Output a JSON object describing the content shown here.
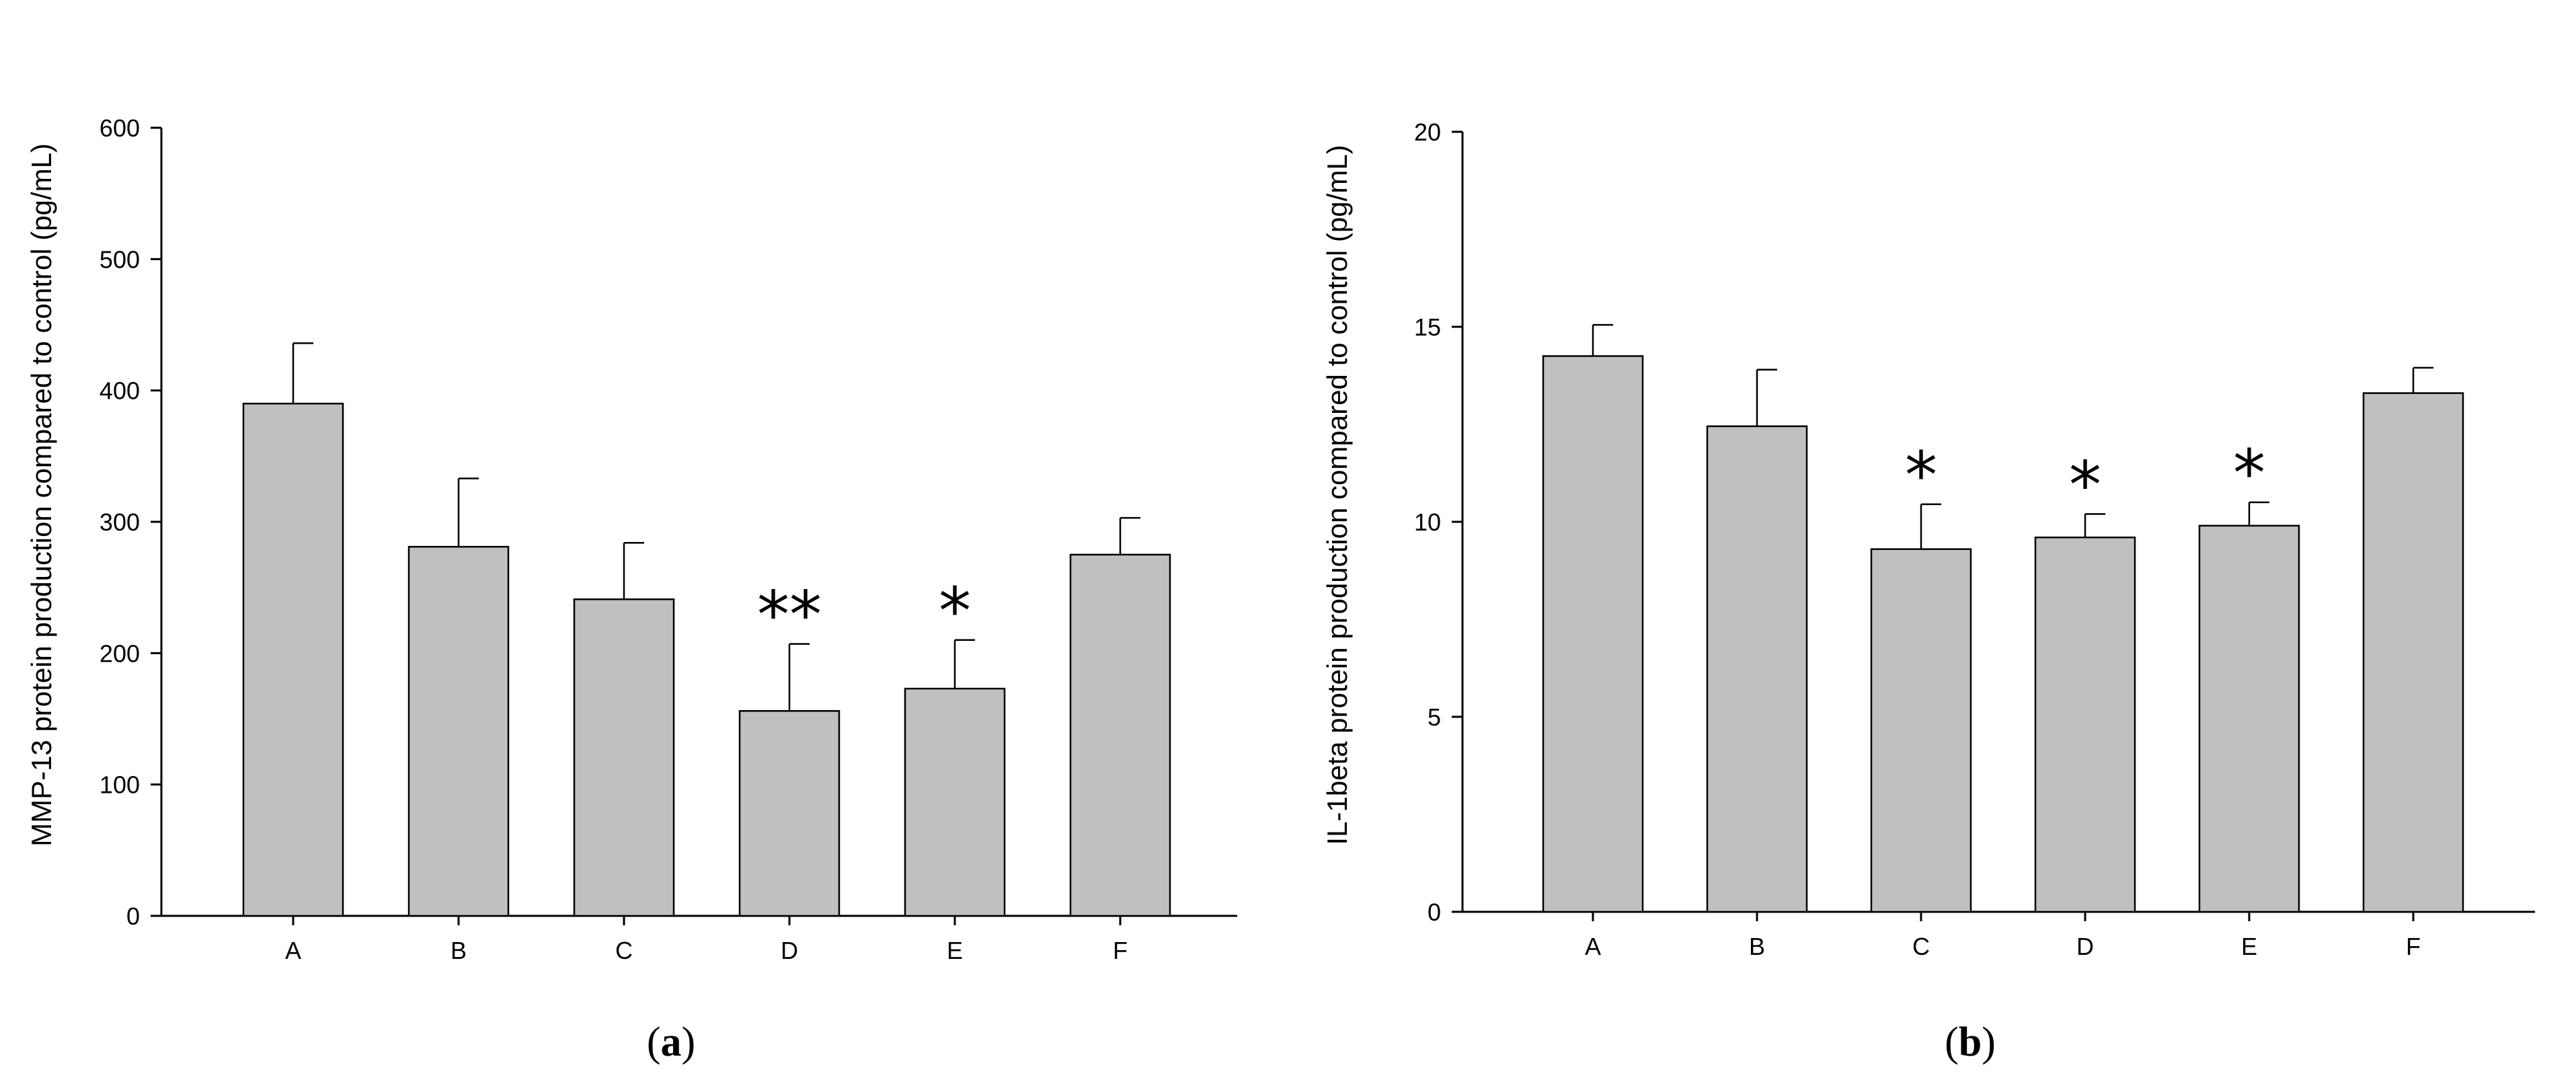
{
  "chart_data": [
    {
      "type": "bar",
      "panel_label": "a",
      "categories": [
        "A",
        "B",
        "C",
        "D",
        "E",
        "F"
      ],
      "values": [
        390,
        281,
        241,
        156,
        173,
        275
      ],
      "error_upper": [
        436,
        333,
        284,
        207,
        210,
        303
      ],
      "significance": [
        "",
        "",
        "",
        "**",
        "*",
        ""
      ],
      "ylabel": "MMP-13 protein production compared to control (pg/mL)",
      "xlabel": "",
      "ylim": [
        0,
        600
      ],
      "yticks": [
        0,
        100,
        200,
        300,
        400,
        500,
        600
      ],
      "bar_color": "#c0c0c0",
      "grid": false
    },
    {
      "type": "bar",
      "panel_label": "b",
      "categories": [
        "A",
        "B",
        "C",
        "D",
        "E",
        "F"
      ],
      "values": [
        14.25,
        12.45,
        9.3,
        9.6,
        9.9,
        13.3
      ],
      "error_upper": [
        15.05,
        13.9,
        10.45,
        10.2,
        10.5,
        13.95
      ],
      "significance": [
        "",
        "",
        "*",
        "*",
        "*",
        ""
      ],
      "ylabel": "IL-1beta protein production compared to control (pg/mL)",
      "xlabel": "",
      "ylim": [
        0,
        20
      ],
      "yticks": [
        0,
        5,
        10,
        15,
        20
      ],
      "bar_color": "#c0c0c0",
      "grid": false
    }
  ]
}
